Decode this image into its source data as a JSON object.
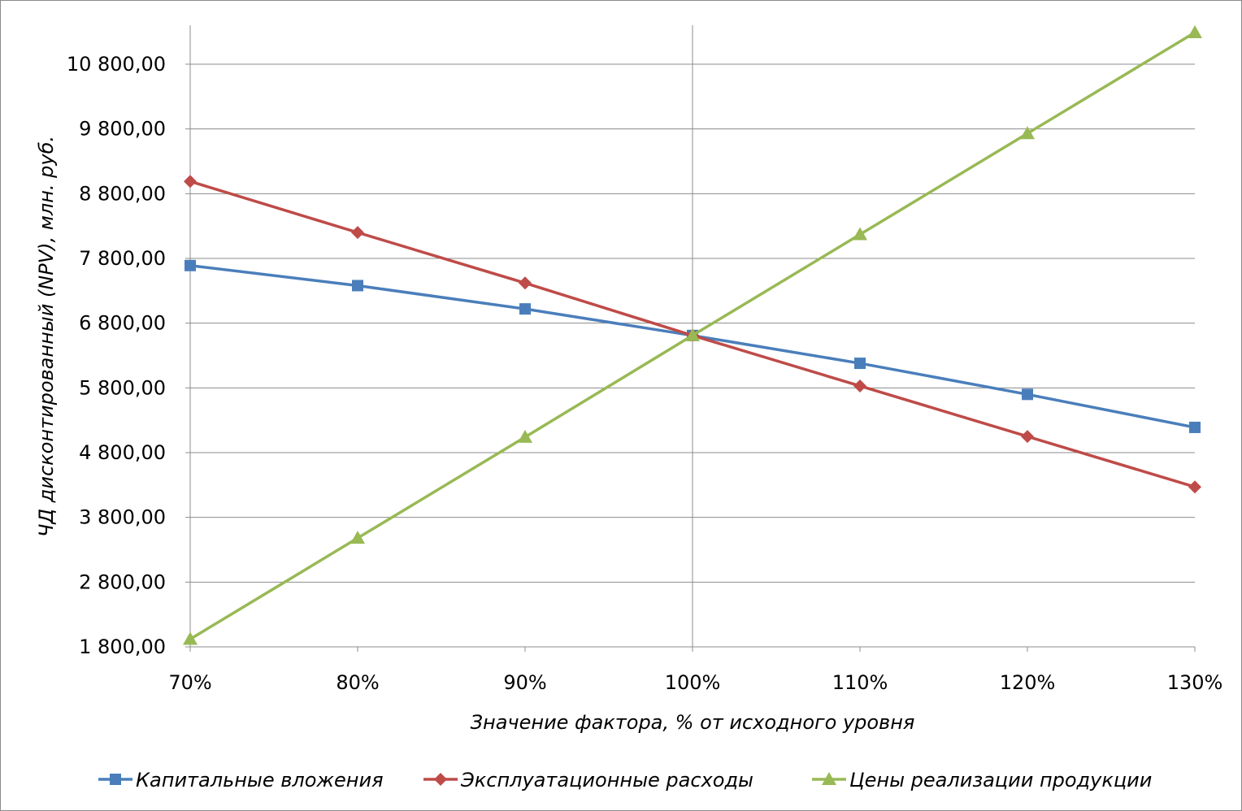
{
  "chart_data": {
    "type": "line",
    "categories": [
      "70%",
      "80%",
      "90%",
      "100%",
      "110%",
      "120%",
      "130%"
    ],
    "series": [
      {
        "name": "Капитальные вложения",
        "values": [
          7690,
          7380,
          7020,
          6610,
          6180,
          5700,
          5190
        ],
        "color": "#4a7ebb",
        "marker": "square"
      },
      {
        "name": "Эксплуатационные расходы",
        "values": [
          8990,
          8200,
          7420,
          6610,
          5830,
          5050,
          4270
        ],
        "color": "#be4b48",
        "marker": "diamond"
      },
      {
        "name": "Цены реализации продукции",
        "values": [
          1920,
          3480,
          5040,
          6610,
          8170,
          9730,
          11290
        ],
        "color": "#98b954",
        "marker": "triangle"
      }
    ],
    "yticks": [
      "1 800,00",
      "2 800,00",
      "3 800,00",
      "4 800,00",
      "5 800,00",
      "6 800,00",
      "7 800,00",
      "8 800,00",
      "9 800,00",
      "10 800,00"
    ],
    "ylim": [
      1800,
      10800
    ],
    "xlabel": "Значение фактора, % от исходного уровня",
    "ylabel": "ЧД дисконтированный (NPV), млн. руб.",
    "grid": true,
    "legend_position": "bottom"
  }
}
